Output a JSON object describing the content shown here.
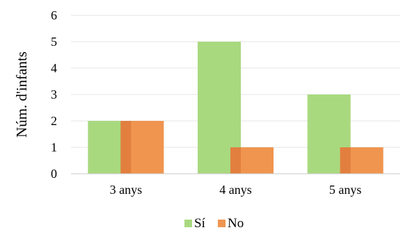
{
  "chart_data": {
    "type": "bar",
    "categories": [
      "3 anys",
      "4 anys",
      "5 anys"
    ],
    "series": [
      {
        "name": "Sí",
        "values": [
          2,
          5,
          3
        ],
        "color": "#a9d97f"
      },
      {
        "name": "No",
        "values": [
          2,
          1,
          1
        ],
        "color": "#f0954f"
      }
    ],
    "overlap_color": "#e27f3f",
    "title": "",
    "xlabel": "",
    "ylabel": "Núm. d'infants",
    "ylim": [
      0,
      6
    ],
    "yticks": [
      0,
      1,
      2,
      3,
      4,
      5,
      6
    ],
    "grid": true,
    "legend_position": "bottom"
  }
}
